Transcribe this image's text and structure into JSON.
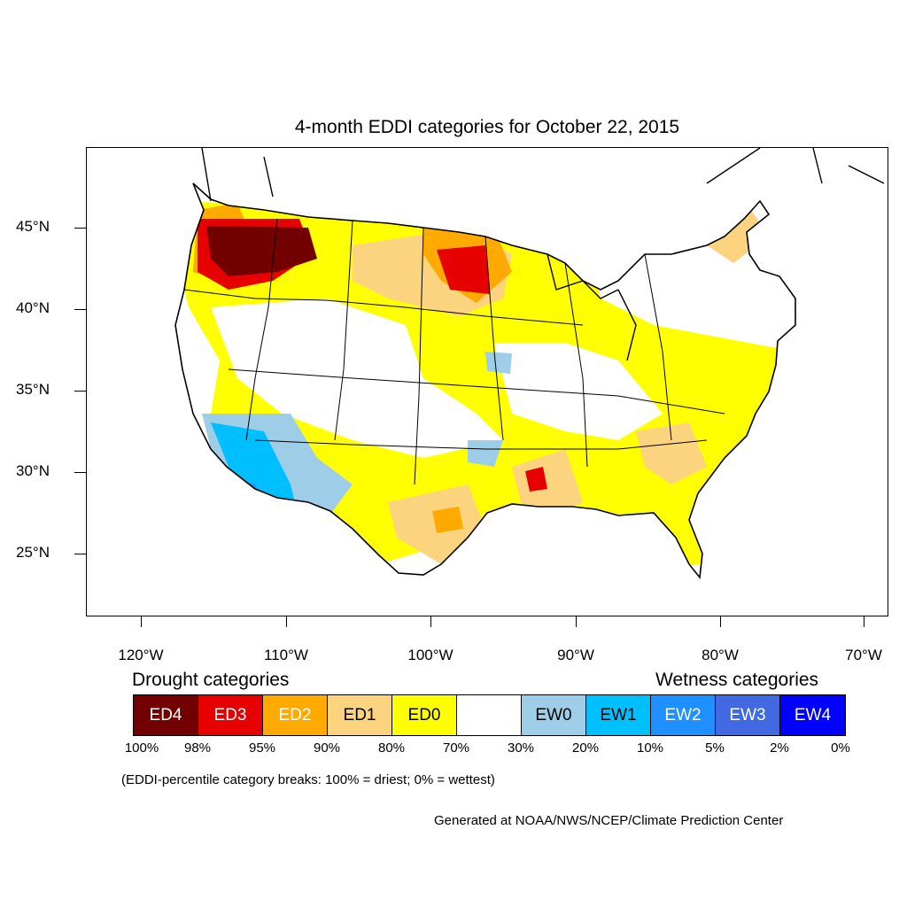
{
  "title": "4-month EDDI categories for October 22, 2015",
  "axes": {
    "lat_labels": [
      "45°N",
      "40°N",
      "35°N",
      "30°N",
      "25°N"
    ],
    "lon_labels": [
      "120°W",
      "110°W",
      "100°W",
      "90°W",
      "80°W",
      "70°W"
    ]
  },
  "legend": {
    "drought_heading": "Drought categories",
    "wetness_heading": "Wetness categories",
    "categories": [
      {
        "label": "ED4",
        "color": "#730000",
        "text_color": "#ffffff"
      },
      {
        "label": "ED3",
        "color": "#e60000",
        "text_color": "#ffffff"
      },
      {
        "label": "ED2",
        "color": "#ffaa00",
        "text_color": "#ffffff"
      },
      {
        "label": "ED1",
        "color": "#fcd37f",
        "text_color": "#000000"
      },
      {
        "label": "ED0",
        "color": "#ffff00",
        "text_color": "#000000"
      },
      {
        "label": "",
        "color": "#ffffff",
        "text_color": "#000000"
      },
      {
        "label": "EW0",
        "color": "#9ecde8",
        "text_color": "#000000"
      },
      {
        "label": "EW1",
        "color": "#00bfff",
        "text_color": "#000000"
      },
      {
        "label": "EW2",
        "color": "#1e90ff",
        "text_color": "#ffffff"
      },
      {
        "label": "EW3",
        "color": "#4169e1",
        "text_color": "#ffffff"
      },
      {
        "label": "EW4",
        "color": "#0000ff",
        "text_color": "#ffffff"
      }
    ],
    "percentile_breaks": [
      "100%",
      "98%",
      "95%",
      "90%",
      "80%",
      "70%",
      "30%",
      "20%",
      "10%",
      "5%",
      "2%",
      "0%"
    ]
  },
  "note": "(EDDI-percentile category breaks: 100% = driest; 0% = wettest)",
  "credit": "Generated at NOAA/NWS/NCEP/Climate Prediction Center"
}
